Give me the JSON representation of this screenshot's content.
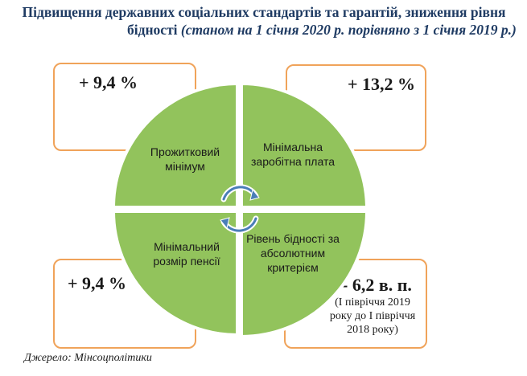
{
  "title": {
    "line1": "Підвищення державних соціальних стандартів та гарантій, зниження рівня",
    "line2_main": "бідності ",
    "line2_italic": "(станом на 1 січня 2020 р. порівняно з 1 січня 2019 р.)"
  },
  "quadrants": {
    "top_left": {
      "label": "Прожитковий мінімум",
      "value": "+ 9,4 %"
    },
    "top_right": {
      "label": "Мінімальна заробітна плата",
      "value": "+ 13,2 %"
    },
    "bottom_left": {
      "label": "Мінімальний розмір пенсії",
      "value": "+ 9,4 %"
    },
    "bottom_right": {
      "label": "Рівень бідності за абсолютним критерієм",
      "value": "- 6,2 в. п.",
      "note": "(І півріччя 2019 року до І півріччя 2018 року)"
    }
  },
  "colors": {
    "quadrant_fill": "#92c35c",
    "quadrant_stroke": "#ffffff",
    "box_border": "#f0a35a",
    "title": "#1f3b63",
    "arrows": "#4a7eb8"
  },
  "icons": {
    "center": "cycle-arrows-icon"
  },
  "source": "Джерело: Мінсоцполітики"
}
